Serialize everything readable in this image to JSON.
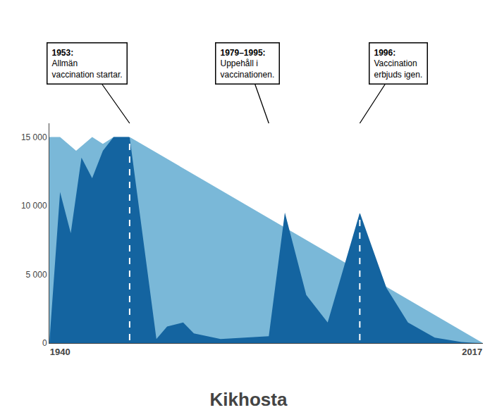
{
  "chart_data": {
    "type": "area",
    "title": "Kikhosta",
    "series": [
      {
        "color": "#7ab8d8",
        "x": [
          1938,
          1940,
          1943,
          1946,
          1948,
          1950,
          1953,
          2019
        ],
        "values": [
          15000,
          15000,
          14000,
          15000,
          14500,
          15000,
          15000,
          0
        ]
      },
      {
        "color": "#1464a0",
        "x": [
          1938,
          1940,
          1942,
          1944,
          1946,
          1948,
          1950,
          1953,
          1958,
          1960,
          1963,
          1965,
          1970,
          1979,
          1982,
          1986,
          1990,
          1996,
          2001,
          2005,
          2010,
          2014,
          2015,
          2017,
          2019
        ],
        "values": [
          0,
          11000,
          8000,
          13500,
          12000,
          14000,
          15000,
          15000,
          300,
          1200,
          1500,
          700,
          300,
          500,
          9500,
          3500,
          1500,
          9500,
          4000,
          1500,
          400,
          150,
          80,
          30,
          0
        ]
      }
    ],
    "xlim": [
      1938,
      2019
    ],
    "xticks": [
      1940,
      2017
    ],
    "ylim": [
      0,
      16000
    ],
    "yticks": [
      0,
      {
        "value": 5000,
        "label": "5 000"
      },
      {
        "value": 10000,
        "label": "10 000"
      },
      {
        "value": 15000,
        "label": "15 000"
      }
    ],
    "grid": false,
    "drop_lines": [
      {
        "x": 1953,
        "y_top": 15000,
        "y_bottom": 200
      },
      {
        "x": 1996,
        "y_top": 9500,
        "y_bottom": 200
      }
    ],
    "annotations": [
      {
        "x": 1953,
        "title": "1953:",
        "body": "Allmän\nvaccination startar."
      },
      {
        "x": 1979,
        "title": "1979–1995:",
        "body": "Uppehåll i\nvaccinationen."
      },
      {
        "x": 1996,
        "title": "1996:",
        "body": "Vaccination\nerbjuds igen."
      }
    ]
  }
}
